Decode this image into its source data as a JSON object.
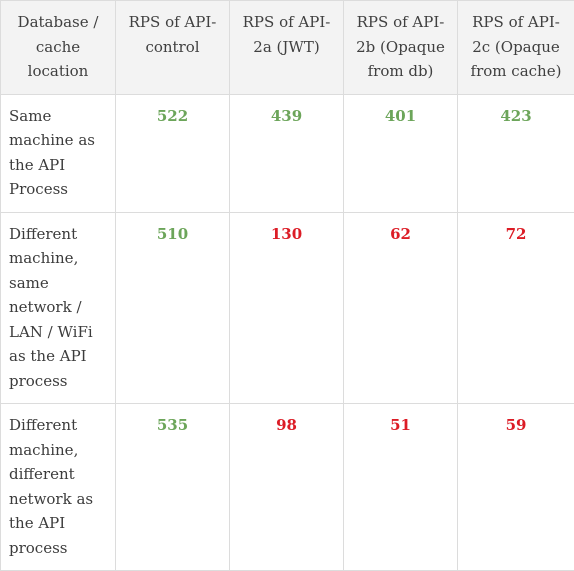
{
  "table": {
    "headers": [
      "Database / cache location",
      "RPS of API-control",
      "RPS of API-2a (JWT)",
      "RPS of API-2b (Opaque from db)",
      "RPS of API-2c (Opaque from cache)"
    ],
    "rows": [
      {
        "label": "Same machine as the API Process",
        "values": [
          "522",
          "439",
          "401",
          "423"
        ]
      },
      {
        "label": "Different machine, same network / LAN / WiFi as the API process",
        "values": [
          "510",
          "130",
          "62",
          "72"
        ]
      },
      {
        "label": "Different machine, different network as the API process",
        "values": [
          "535",
          "98",
          "51",
          "59"
        ]
      }
    ]
  },
  "colors": {
    "good": "#6ca55a",
    "bad": "#dc1c26",
    "header_bg": "#f3f3f3",
    "border": "#dcdcdc"
  }
}
